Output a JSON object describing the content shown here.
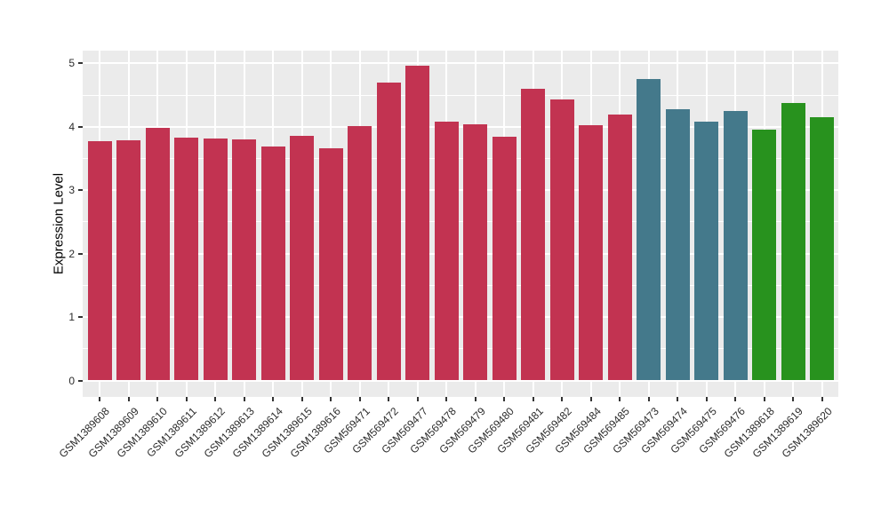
{
  "chart_data": {
    "type": "bar",
    "title": "",
    "xlabel": "",
    "ylabel": "Expression Level",
    "ylim": [
      0,
      5.2
    ],
    "yticks": [
      "0",
      "1",
      "2",
      "3",
      "4",
      "5"
    ],
    "grid": "on",
    "legend": "none",
    "categories": [
      "GSM1389608",
      "GSM1389609",
      "GSM1389610",
      "GSM1389611",
      "GSM1389612",
      "GSM1389613",
      "GSM1389614",
      "GSM1389615",
      "GSM1389616",
      "GSM569471",
      "GSM569472",
      "GSM569477",
      "GSM569478",
      "GSM569479",
      "GSM569480",
      "GSM569481",
      "GSM569482",
      "GSM569484",
      "GSM569485",
      "GSM569473",
      "GSM569474",
      "GSM569475",
      "GSM569476",
      "GSM1389618",
      "GSM1389619",
      "GSM1389620"
    ],
    "values": [
      3.77,
      3.79,
      3.98,
      3.83,
      3.81,
      3.8,
      3.69,
      3.85,
      3.66,
      4.01,
      4.7,
      4.96,
      4.08,
      4.04,
      3.84,
      4.6,
      4.43,
      4.02,
      4.19,
      4.75,
      4.28,
      4.08,
      4.25,
      3.96,
      4.38,
      4.15
    ],
    "bar_groups": [
      "red",
      "red",
      "red",
      "red",
      "red",
      "red",
      "red",
      "red",
      "red",
      "red",
      "red",
      "red",
      "red",
      "red",
      "red",
      "red",
      "red",
      "red",
      "red",
      "teal",
      "teal",
      "teal",
      "teal",
      "green",
      "green",
      "green"
    ],
    "group_colors": {
      "red": "#C23351",
      "teal": "#44798B",
      "green": "#28921E"
    },
    "panel_bg": "#EBEBEB",
    "grid_color": "#FFFFFF",
    "axis_text_color": "#2B2B2B",
    "tick_mark_color": "#333333",
    "title_color": "#000000",
    "figure_bg": "#FFFFFF"
  }
}
